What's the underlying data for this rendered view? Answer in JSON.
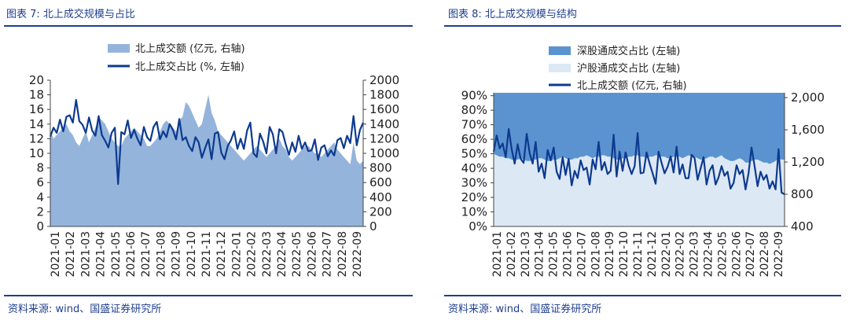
{
  "left": {
    "title": "图表 7:  北上成交规模与占比",
    "source": "资料来源:  wind、国盛证券研究所"
  },
  "right": {
    "title": "图表 8:  北上成交规模与结构",
    "source": "资料来源:  wind、国盛证券研究所"
  },
  "colors": {
    "accent": "#1f3f8f",
    "line": "#0d3a8e",
    "area_mid": "#94b4dc",
    "area_dark": "#5b93d1",
    "area_light": "#dde8f5"
  },
  "chart_data": [
    {
      "type": "line",
      "legend": [
        "北上成交额 (亿元, 右轴)",
        "北上成交占比 (%, 左轴)"
      ],
      "x_ticks": [
        "2021-01",
        "2021-02",
        "2021-03",
        "2021-04",
        "2021-05",
        "2021-06",
        "2021-07",
        "2021-08",
        "2021-09",
        "2021-10",
        "2021-11",
        "2021-12",
        "2022-01",
        "2022-02",
        "2022-03",
        "2022-04",
        "2022-05",
        "2022-06",
        "2022-07",
        "2022-08",
        "2022-09"
      ],
      "y_left_ticks": [
        "0",
        "2",
        "4",
        "6",
        "8",
        "10",
        "12",
        "14",
        "16",
        "18",
        "20"
      ],
      "y_right_ticks": [
        "0",
        "200",
        "400",
        "600",
        "800",
        "1000",
        "1200",
        "1400",
        "1600",
        "1800",
        "2000"
      ],
      "ylim_left": [
        0,
        20
      ],
      "ylim_right": [
        0,
        2000
      ],
      "series": [
        {
          "name": "北上成交额 (亿元, 右轴)",
          "kind": "area",
          "axis": "right",
          "values": [
            1300,
            1200,
            1250,
            1300,
            1350,
            1400,
            1300,
            1250,
            1150,
            1100,
            1200,
            1300,
            1150,
            1250,
            1350,
            1500,
            1450,
            1400,
            1300,
            1200,
            1150,
            1100,
            1100,
            1200,
            1250,
            1300,
            1350,
            1300,
            1250,
            1200,
            1100,
            1100,
            1150,
            1200,
            1300,
            1400,
            1450,
            1400,
            1350,
            1300,
            1450,
            1500,
            1700,
            1650,
            1550,
            1450,
            1350,
            1400,
            1600,
            1800,
            1550,
            1450,
            1300,
            1250,
            1200,
            1150,
            1100,
            1050,
            1000,
            950,
            900,
            950,
            1000,
            1050,
            1100,
            1050,
            1000,
            950,
            1000,
            1050,
            1100,
            1200,
            1100,
            1050,
            950,
            900,
            950,
            1000,
            1050,
            1100,
            1100,
            1050,
            1000,
            1000,
            950,
            1000,
            1050,
            1100,
            1150,
            1050,
            1000,
            950,
            900,
            850,
            1150,
            900,
            850,
            900
          ]
        },
        {
          "name": "北上成交占比 (%, 左轴)",
          "kind": "line",
          "axis": "left",
          "values": [
            12.3,
            13.5,
            12.8,
            14.6,
            13.0,
            15.0,
            15.2,
            14.2,
            17.3,
            14.4,
            13.9,
            12.8,
            14.9,
            13.1,
            12.4,
            15.1,
            12.5,
            11.7,
            10.8,
            12.8,
            13.5,
            5.8,
            12.9,
            12.6,
            14.5,
            12.1,
            13.2,
            12.0,
            11.1,
            13.6,
            12.2,
            11.7,
            13.6,
            14.3,
            11.9,
            13.0,
            12.2,
            14.0,
            13.2,
            11.9,
            14.7,
            11.8,
            12.2,
            11.0,
            10.3,
            12.2,
            11.5,
            9.4,
            10.7,
            11.9,
            9.2,
            12.7,
            12.9,
            10.1,
            9.2,
            11.0,
            11.8,
            13.0,
            10.6,
            12.0,
            10.6,
            13.1,
            14.2,
            10.0,
            9.5,
            12.7,
            11.6,
            10.0,
            13.6,
            12.6,
            10.0,
            13.3,
            12.9,
            11.2,
            9.8,
            11.5,
            10.2,
            12.4,
            10.6,
            11.5,
            10.3,
            10.4,
            11.9,
            9.1,
            10.8,
            11.1,
            9.6,
            10.4,
            9.7,
            11.8,
            12.1,
            10.7,
            12.4,
            11.4,
            15.1,
            11.1,
            13.2,
            14.2
          ]
        }
      ]
    },
    {
      "type": "area",
      "legend": [
        "深股通成交占比 (左轴)",
        "沪股通成交占比 (左轴)",
        "北上成交额 (亿元, 右轴)"
      ],
      "x_ticks": [
        "2021-01",
        "2021-02",
        "2021-03",
        "2021-04",
        "2021-05",
        "2021-06",
        "2021-07",
        "2021-08",
        "2021-09",
        "2021-10",
        "2021-11",
        "2021-12",
        "2022-01",
        "2022-02",
        "2022-03",
        "2022-04",
        "2022-05",
        "2022-06",
        "2022-07",
        "2022-08",
        "2022-09"
      ],
      "y_left_ticks": [
        "0%",
        "10%",
        "20%",
        "30%",
        "40%",
        "50%",
        "60%",
        "70%",
        "80%",
        "90%"
      ],
      "y_right_ticks": [
        "400",
        "800",
        "1,200",
        "1,600",
        "2,000"
      ],
      "ylim_left": [
        0,
        92
      ],
      "ylim_right": [
        400,
        2060
      ],
      "series": [
        {
          "name": "深股通成交占比 (左轴)",
          "kind": "area",
          "axis": "left",
          "values": [
            92,
            92,
            92,
            92,
            92,
            92,
            92,
            92,
            92,
            92,
            92,
            92,
            92,
            92,
            92,
            92,
            92,
            92,
            92,
            92,
            92,
            92,
            92,
            92,
            92,
            92,
            92,
            92,
            92,
            92,
            92,
            92,
            92,
            92,
            92,
            92,
            92,
            92,
            92,
            92,
            92,
            92,
            92,
            92,
            92,
            92,
            92,
            92,
            92,
            92,
            92,
            92,
            92,
            92,
            92,
            92,
            92,
            92,
            92,
            92,
            92,
            92,
            92,
            92,
            92,
            92,
            92,
            92,
            92,
            92,
            92,
            92,
            92,
            92,
            92,
            92,
            92,
            92,
            92,
            92,
            92,
            92,
            92,
            92,
            92,
            92,
            92,
            92,
            92,
            92,
            92,
            92,
            92,
            92,
            92,
            92,
            92,
            92
          ]
        },
        {
          "name": "沪股通成交占比 (左轴)",
          "kind": "area",
          "axis": "left",
          "values": [
            50,
            49,
            48,
            48,
            47,
            47,
            46,
            46,
            46,
            47,
            46,
            45,
            45,
            46,
            46,
            47,
            47,
            46,
            45,
            45,
            46,
            46,
            47,
            48,
            47,
            46,
            46,
            47,
            47,
            48,
            48,
            49,
            48,
            47,
            48,
            48,
            49,
            49,
            48,
            48,
            47,
            46,
            46,
            47,
            47,
            48,
            48,
            49,
            49,
            48,
            48,
            47,
            48,
            48,
            49,
            49,
            48,
            48,
            47,
            47,
            48,
            48,
            48,
            47,
            48,
            49,
            48,
            48,
            47,
            46,
            46,
            47,
            48,
            48,
            47,
            48,
            49,
            47,
            46,
            45,
            45,
            46,
            47,
            46,
            44,
            44,
            45,
            46,
            46,
            45,
            44,
            44,
            43,
            44,
            45,
            47,
            46,
            46
          ]
        },
        {
          "name": "北上成交额 (亿元, 右轴)",
          "kind": "line",
          "axis": "right",
          "values": [
            1330,
            1530,
            1370,
            1430,
            1260,
            1610,
            1360,
            1180,
            1420,
            1240,
            1190,
            1550,
            1310,
            1180,
            1450,
            1080,
            1180,
            1000,
            1350,
            1220,
            1380,
            1080,
            990,
            1260,
            1040,
            1240,
            910,
            1090,
            1000,
            1220,
            1100,
            1130,
            920,
            1230,
            1110,
            1450,
            1100,
            1200,
            1050,
            1090,
            1540,
            1020,
            1330,
            1090,
            1320,
            1160,
            1050,
            1150,
            1560,
            1060,
            1070,
            1320,
            1180,
            1060,
            930,
            1330,
            1190,
            1060,
            1140,
            1270,
            1070,
            1390,
            1050,
            1170,
            1000,
            1000,
            1290,
            1250,
            980,
            1120,
            1260,
            920,
            1090,
            1160,
            920,
            1010,
            1150,
            1030,
            1080,
            870,
            940,
            1160,
            1050,
            1100,
            860,
            1060,
            1380,
            1150,
            900,
            1080,
            980,
            1040,
            870,
            960,
            860,
            1360,
            820,
            800
          ]
        }
      ]
    }
  ]
}
